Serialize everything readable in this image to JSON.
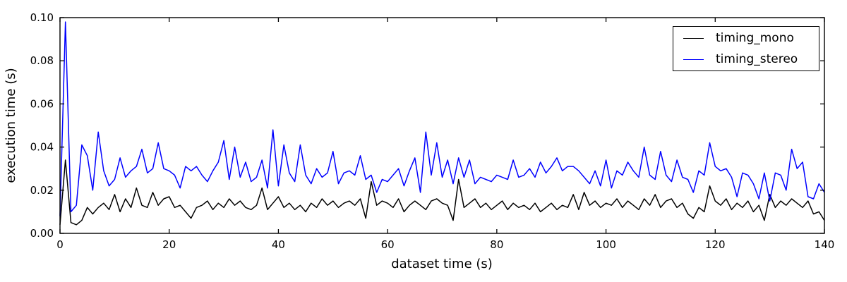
{
  "figure": {
    "background": "#ffffff",
    "frame_color": "#000000"
  },
  "legend": {
    "position": "upper right",
    "items": [
      {
        "label": "timing_mono",
        "color": "#000000"
      },
      {
        "label": "timing_stereo",
        "color": "#0000ff"
      }
    ]
  },
  "chart_data": {
    "type": "line",
    "title": "",
    "xlabel": "dataset time (s)",
    "ylabel": "execution time (s)",
    "xlim": [
      0,
      140
    ],
    "ylim": [
      0.0,
      0.1
    ],
    "x_ticks": [
      "0",
      "20",
      "40",
      "60",
      "80",
      "100",
      "120",
      "140"
    ],
    "y_ticks": [
      "0.00",
      "0.02",
      "0.04",
      "0.06",
      "0.08",
      "0.10"
    ],
    "grid": false,
    "legend_position": "upper right",
    "x_step": 1,
    "series": [
      {
        "name": "timing_mono",
        "color": "#000000",
        "values": [
          0.004,
          0.034,
          0.005,
          0.004,
          0.006,
          0.012,
          0.009,
          0.012,
          0.014,
          0.011,
          0.018,
          0.01,
          0.016,
          0.012,
          0.021,
          0.013,
          0.012,
          0.019,
          0.013,
          0.016,
          0.017,
          0.012,
          0.013,
          0.01,
          0.007,
          0.012,
          0.013,
          0.015,
          0.011,
          0.014,
          0.012,
          0.016,
          0.013,
          0.015,
          0.012,
          0.011,
          0.013,
          0.021,
          0.011,
          0.014,
          0.017,
          0.012,
          0.014,
          0.011,
          0.013,
          0.01,
          0.014,
          0.012,
          0.016,
          0.013,
          0.015,
          0.012,
          0.014,
          0.015,
          0.013,
          0.016,
          0.007,
          0.024,
          0.013,
          0.015,
          0.014,
          0.012,
          0.016,
          0.01,
          0.013,
          0.015,
          0.013,
          0.011,
          0.015,
          0.016,
          0.014,
          0.013,
          0.006,
          0.025,
          0.012,
          0.014,
          0.016,
          0.012,
          0.014,
          0.011,
          0.013,
          0.015,
          0.011,
          0.014,
          0.012,
          0.013,
          0.011,
          0.014,
          0.01,
          0.012,
          0.014,
          0.011,
          0.013,
          0.012,
          0.018,
          0.011,
          0.019,
          0.013,
          0.015,
          0.012,
          0.014,
          0.013,
          0.016,
          0.012,
          0.015,
          0.013,
          0.011,
          0.016,
          0.013,
          0.018,
          0.012,
          0.015,
          0.016,
          0.012,
          0.014,
          0.009,
          0.007,
          0.012,
          0.01,
          0.022,
          0.015,
          0.013,
          0.016,
          0.011,
          0.014,
          0.012,
          0.015,
          0.01,
          0.013,
          0.006,
          0.018,
          0.012,
          0.015,
          0.013,
          0.016,
          0.014,
          0.012,
          0.015,
          0.009,
          0.01,
          0.006
        ]
      },
      {
        "name": "timing_stereo",
        "color": "#0000ff",
        "values": [
          0.008,
          0.098,
          0.01,
          0.013,
          0.041,
          0.036,
          0.02,
          0.047,
          0.029,
          0.022,
          0.025,
          0.035,
          0.026,
          0.029,
          0.031,
          0.039,
          0.028,
          0.03,
          0.042,
          0.03,
          0.029,
          0.027,
          0.021,
          0.031,
          0.029,
          0.031,
          0.027,
          0.024,
          0.029,
          0.033,
          0.043,
          0.025,
          0.04,
          0.026,
          0.033,
          0.024,
          0.026,
          0.034,
          0.021,
          0.048,
          0.022,
          0.041,
          0.028,
          0.024,
          0.041,
          0.027,
          0.023,
          0.03,
          0.026,
          0.028,
          0.038,
          0.023,
          0.028,
          0.029,
          0.027,
          0.036,
          0.025,
          0.027,
          0.019,
          0.025,
          0.024,
          0.027,
          0.03,
          0.022,
          0.029,
          0.035,
          0.019,
          0.047,
          0.027,
          0.042,
          0.026,
          0.034,
          0.023,
          0.035,
          0.026,
          0.034,
          0.023,
          0.026,
          0.025,
          0.024,
          0.027,
          0.026,
          0.025,
          0.034,
          0.026,
          0.027,
          0.03,
          0.026,
          0.033,
          0.028,
          0.031,
          0.035,
          0.029,
          0.031,
          0.031,
          0.029,
          0.026,
          0.023,
          0.029,
          0.022,
          0.034,
          0.021,
          0.029,
          0.027,
          0.033,
          0.029,
          0.026,
          0.04,
          0.027,
          0.025,
          0.038,
          0.027,
          0.024,
          0.034,
          0.026,
          0.025,
          0.019,
          0.029,
          0.027,
          0.042,
          0.031,
          0.029,
          0.03,
          0.026,
          0.017,
          0.028,
          0.027,
          0.023,
          0.016,
          0.028,
          0.015,
          0.028,
          0.027,
          0.02,
          0.039,
          0.03,
          0.033,
          0.017,
          0.016,
          0.023,
          0.019
        ]
      }
    ]
  }
}
